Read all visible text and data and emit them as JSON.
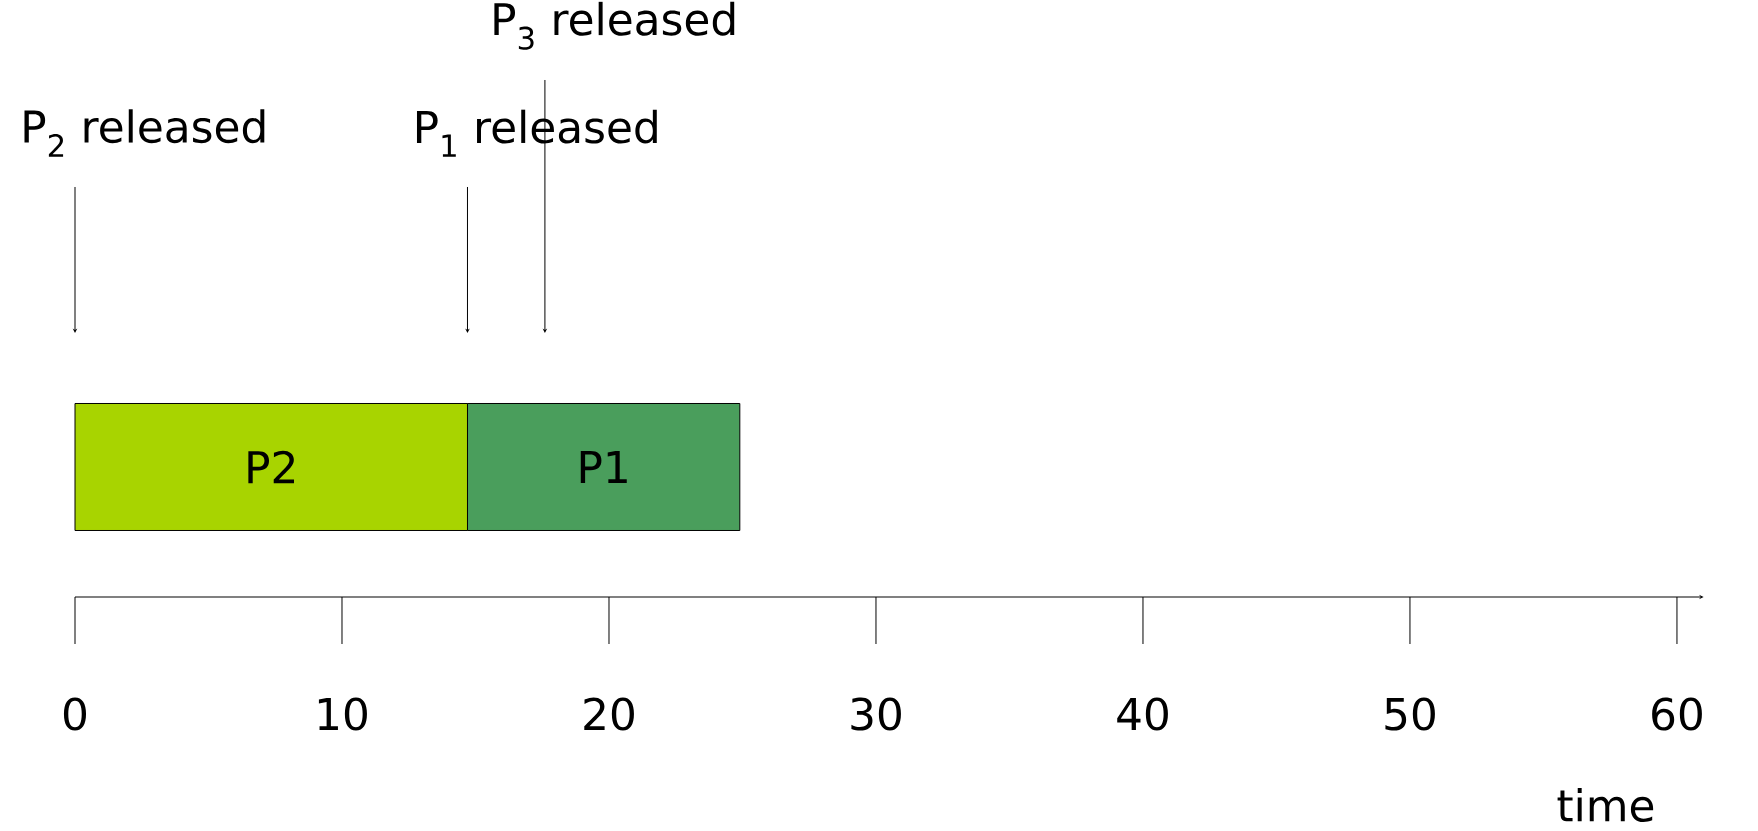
{
  "chart_data": {
    "type": "bar",
    "orientation": "horizontal",
    "stacked": true,
    "categories": [
      null
    ],
    "xlabel": "time",
    "xlim": [
      0,
      61
    ],
    "xticks": [
      0,
      10,
      20,
      30,
      40,
      50,
      60
    ],
    "series": [
      {
        "name": "P2",
        "color": "#a8d400",
        "values": [
          14.7
        ]
      },
      {
        "name": "P1",
        "color": "#4a9e5c",
        "values": [
          10.2
        ]
      }
    ],
    "ref_lines": [
      {
        "axis": "x",
        "value": 0,
        "label": "P$_{2}$ released"
      },
      {
        "axis": "x",
        "value": 14.7,
        "label": "P$_{1}$ released"
      },
      {
        "axis": "x",
        "value": 17.6,
        "label": "P$_{3}$ released"
      }
    ]
  }
}
